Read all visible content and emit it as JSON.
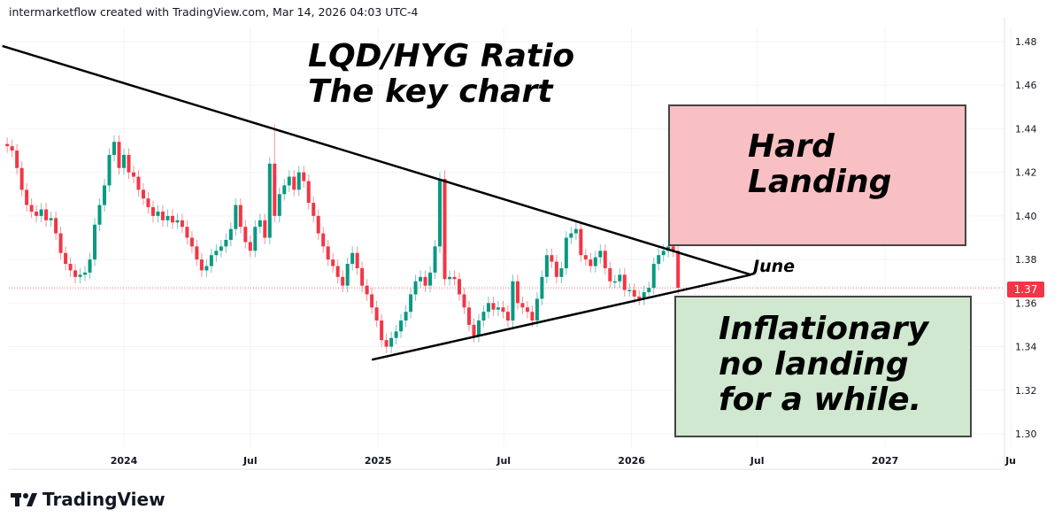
{
  "credit": "intermarketflow created with TradingView.com, Mar 14, 2026 04:03 UTC-4",
  "logo_text": "TradingView",
  "annotations": {
    "title_line1": "LQD/HYG Ratio",
    "title_line2": "The key chart",
    "hard_line1": "Hard",
    "hard_line2": "Landing",
    "infl_line1": "Inflationary",
    "infl_line2": "no landing",
    "infl_line3": "for a while.",
    "june": "June"
  },
  "colors": {
    "up": "#089981",
    "down": "#f23645",
    "hard_box": "#f9c0c4",
    "infl_box": "#cfe8cf",
    "trendline": "#000000"
  },
  "chart_data": {
    "type": "candlestick",
    "title": "LQD/HYG Ratio",
    "interval": "weekly",
    "first_week": "2023-07-17",
    "closes": [
      1.432,
      1.43,
      1.422,
      1.412,
      1.405,
      1.402,
      1.4,
      1.403,
      1.398,
      1.399,
      1.392,
      1.383,
      1.378,
      1.375,
      1.372,
      1.373,
      1.374,
      1.38,
      1.396,
      1.405,
      1.414,
      1.428,
      1.434,
      1.422,
      1.428,
      1.42,
      1.418,
      1.412,
      1.408,
      1.404,
      1.4,
      1.402,
      1.398,
      1.4,
      1.397,
      1.398,
      1.395,
      1.39,
      1.386,
      1.38,
      1.375,
      1.377,
      1.382,
      1.384,
      1.386,
      1.389,
      1.394,
      1.405,
      1.395,
      1.388,
      1.384,
      1.395,
      1.398,
      1.39,
      1.424,
      1.4,
      1.41,
      1.414,
      1.418,
      1.412,
      1.42,
      1.416,
      1.406,
      1.4,
      1.392,
      1.386,
      1.38,
      1.377,
      1.372,
      1.368,
      1.378,
      1.383,
      1.376,
      1.368,
      1.364,
      1.358,
      1.352,
      1.343,
      1.34,
      1.344,
      1.347,
      1.352,
      1.356,
      1.364,
      1.37,
      1.372,
      1.368,
      1.374,
      1.386,
      1.417,
      1.371,
      1.372,
      1.371,
      1.364,
      1.358,
      1.35,
      1.345,
      1.352,
      1.356,
      1.36,
      1.357,
      1.358,
      1.356,
      1.352,
      1.37,
      1.36,
      1.358,
      1.356,
      1.352,
      1.362,
      1.372,
      1.382,
      1.379,
      1.372,
      1.376,
      1.39,
      1.392,
      1.394,
      1.382,
      1.38,
      1.377,
      1.381,
      1.384,
      1.376,
      1.37,
      1.37,
      1.373,
      1.366,
      1.366,
      1.363,
      1.362,
      1.365,
      1.367,
      1.378,
      1.382,
      1.384,
      1.386,
      1.384,
      1.367
    ],
    "notable_highs": [
      {
        "week": "2024-08-05",
        "high": 1.442
      },
      {
        "week": "2025-04-07",
        "high": 1.421
      }
    ],
    "last_price": "1.37",
    "last_value": 1.367,
    "ylim": [
      1.29,
      1.49
    ],
    "y_ticks": [
      "1.48",
      "1.46",
      "1.44",
      "1.42",
      "1.40",
      "1.38",
      "1.36",
      "1.34",
      "1.32",
      "1.30"
    ],
    "x_ticks": [
      {
        "label": "2024",
        "date": "2024-01-01"
      },
      {
        "label": "Jul",
        "date": "2024-07-01"
      },
      {
        "label": "2025",
        "date": "2025-01-01"
      },
      {
        "label": "Jul",
        "date": "2025-07-01"
      },
      {
        "label": "2026",
        "date": "2026-01-01"
      },
      {
        "label": "Jul",
        "date": "2026-07-01"
      },
      {
        "label": "2027",
        "date": "2027-01-01"
      },
      {
        "label": "Ju",
        "date": "2027-07-01"
      }
    ],
    "trendlines": [
      {
        "from": {
          "date": "2023-07-10",
          "value": 1.478
        },
        "to": {
          "date": "2026-06-22",
          "value": 1.373
        }
      },
      {
        "from": {
          "date": "2024-12-23",
          "value": 1.334
        },
        "to": {
          "date": "2026-06-22",
          "value": 1.373
        }
      }
    ],
    "grid": true
  }
}
